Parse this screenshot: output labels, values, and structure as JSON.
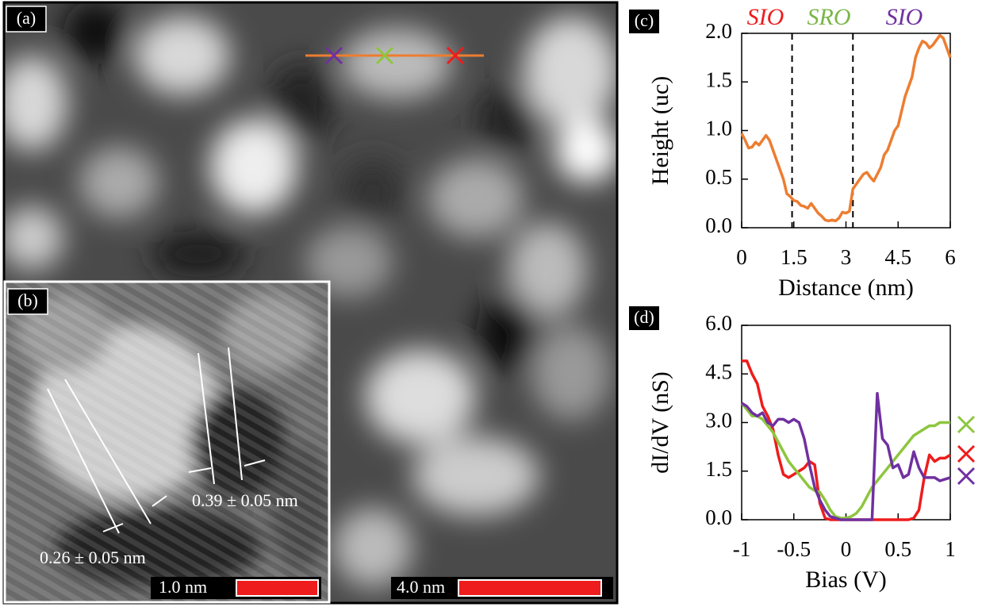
{
  "panels": {
    "a": "(a)",
    "b": "(b)",
    "scale_a": "4.0  nm",
    "scale_b": "1.0  nm",
    "spacing_1": "0.26 ± 0.05 nm",
    "spacing_2": "0.39 ± 0.05 nm"
  },
  "chart_data": [
    {
      "type": "line",
      "panel": "(c)",
      "x_label": "Distance (nm)",
      "y_label": "Height (uc)",
      "regions": [
        {
          "label": "SIO",
          "color": "#ee1c1c"
        },
        {
          "label": "SRO",
          "color": "#7ab648"
        },
        {
          "label": "SIO",
          "color": "#7030a0"
        }
      ],
      "vlines": [
        1.45,
        3.2
      ],
      "x": [
        0,
        0.1,
        0.2,
        0.3,
        0.4,
        0.5,
        0.6,
        0.7,
        0.8,
        0.9,
        1.0,
        1.1,
        1.2,
        1.3,
        1.4,
        1.5,
        1.6,
        1.7,
        1.8,
        1.9,
        2.0,
        2.1,
        2.2,
        2.3,
        2.4,
        2.5,
        2.6,
        2.7,
        2.8,
        2.9,
        3.0,
        3.1,
        3.2,
        3.3,
        3.4,
        3.5,
        3.6,
        3.7,
        3.8,
        3.9,
        4.0,
        4.1,
        4.2,
        4.3,
        4.4,
        4.5,
        4.6,
        4.7,
        4.8,
        4.9,
        5.0,
        5.1,
        5.2,
        5.3,
        5.4,
        5.5,
        5.6,
        5.7,
        5.8,
        5.9,
        6.0
      ],
      "series": [
        {
          "color": "#ed7d31",
          "values": [
            0.97,
            0.9,
            0.82,
            0.83,
            0.88,
            0.85,
            0.9,
            0.95,
            0.9,
            0.8,
            0.7,
            0.6,
            0.5,
            0.35,
            0.32,
            0.28,
            0.27,
            0.23,
            0.22,
            0.2,
            0.25,
            0.2,
            0.15,
            0.12,
            0.08,
            0.07,
            0.08,
            0.07,
            0.1,
            0.16,
            0.15,
            0.17,
            0.4,
            0.45,
            0.5,
            0.55,
            0.57,
            0.52,
            0.48,
            0.55,
            0.62,
            0.75,
            0.8,
            0.9,
            1.0,
            1.05,
            1.2,
            1.35,
            1.45,
            1.55,
            1.75,
            1.85,
            1.92,
            1.9,
            1.85,
            1.88,
            1.93,
            1.98,
            1.95,
            1.85,
            1.75
          ]
        }
      ],
      "xlim": [
        0,
        6
      ],
      "xticks": [
        0,
        1.5,
        3,
        4.5,
        6
      ],
      "ylim": [
        0,
        2
      ],
      "yticks": [
        {
          "value": 0,
          "label": "0.0"
        },
        0.5,
        {
          "value": 1,
          "label": "1.0"
        },
        1.5,
        {
          "value": 2,
          "label": "2.0"
        }
      ]
    },
    {
      "type": "line",
      "panel": "(d)",
      "x_label": "Bias (V)",
      "y_label": "dI/dV (nS)",
      "x": [
        -1,
        -0.95,
        -0.9,
        -0.85,
        -0.8,
        -0.75,
        -0.7,
        -0.65,
        -0.6,
        -0.55,
        -0.5,
        -0.45,
        -0.4,
        -0.35,
        -0.3,
        -0.25,
        -0.2,
        -0.15,
        -0.1,
        -0.05,
        0,
        0.05,
        0.1,
        0.15,
        0.2,
        0.25,
        0.3,
        0.35,
        0.4,
        0.45,
        0.5,
        0.55,
        0.6,
        0.65,
        0.7,
        0.75,
        0.8,
        0.85,
        0.9,
        0.95,
        1
      ],
      "series": [
        {
          "color": "#ee1c1c",
          "values": [
            4.9,
            4.9,
            4.5,
            4.2,
            3.5,
            3.2,
            2.8,
            2.0,
            1.4,
            1.3,
            1.4,
            1.5,
            1.6,
            1.8,
            1.7,
            0.5,
            0.05,
            0,
            0,
            0,
            0,
            0,
            0,
            0,
            0,
            0,
            0,
            0,
            0,
            0,
            0,
            0,
            0,
            0.05,
            0.3,
            1.3,
            2.0,
            1.8,
            1.9,
            1.9,
            2.0
          ]
        },
        {
          "color": "#8dc63f",
          "values": [
            3.6,
            3.4,
            3.2,
            3.2,
            3.1,
            2.9,
            2.7,
            2.4,
            2.1,
            1.8,
            1.6,
            1.4,
            1.2,
            1.0,
            0.9,
            0.85,
            0.6,
            0.3,
            0.1,
            0.05,
            0.05,
            0.1,
            0.2,
            0.4,
            0.7,
            1.0,
            1.2,
            1.4,
            1.6,
            1.8,
            2.0,
            2.2,
            2.4,
            2.6,
            2.7,
            2.8,
            2.9,
            2.9,
            3.0,
            3.0,
            3.0
          ]
        },
        {
          "color": "#7030a0",
          "values": [
            3.6,
            3.5,
            3.3,
            3.2,
            3.3,
            3.0,
            2.9,
            3.1,
            3.1,
            3.0,
            3.1,
            3.0,
            2.5,
            1.7,
            1.0,
            0.6,
            0.3,
            0.1,
            0.05,
            0,
            0,
            0,
            0,
            0,
            0,
            0,
            3.9,
            2.5,
            2.3,
            1.6,
            1.7,
            1.3,
            1.4,
            2.1,
            1.6,
            1.3,
            1.3,
            1.3,
            1.2,
            1.25,
            1.3
          ]
        }
      ],
      "xlim": [
        -1,
        1
      ],
      "xticks": [
        -1,
        -0.5,
        0,
        0.5,
        1
      ],
      "ylim": [
        0,
        6
      ],
      "yticks": [
        {
          "value": 0,
          "label": "0.0"
        },
        1.5,
        {
          "value": 3,
          "label": "3.0"
        },
        4.5,
        {
          "value": 6,
          "label": "6.0"
        }
      ]
    }
  ]
}
